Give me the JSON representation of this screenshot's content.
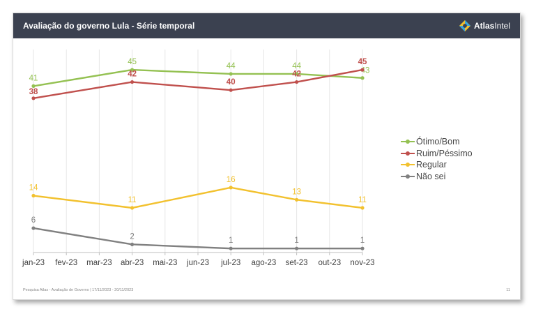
{
  "header": {
    "title": "Avaliação do governo Lula - Série temporal",
    "brand_bold": "Atlas",
    "brand_light": "Intel"
  },
  "footer": {
    "source": "Pesquisa Atlas - Avaliação de Governo | 17/11/2023 - 20/11/2023",
    "page": "11"
  },
  "colors": {
    "header_bg": "#3b4150",
    "otimo_bom": "#94c152",
    "ruim_pessimo": "#c0504d",
    "regular": "#f2c12e",
    "nao_sei": "#808080"
  },
  "chart_data": {
    "type": "line",
    "categories": [
      "jan-23",
      "fev-23",
      "mar-23",
      "abr-23",
      "mai-23",
      "jun-23",
      "jul-23",
      "ago-23",
      "set-23",
      "out-23",
      "nov-23"
    ],
    "ylim": [
      0,
      50
    ],
    "grid": "vertical",
    "legend_position": "right",
    "title": "",
    "xlabel": "",
    "ylabel": "",
    "series": [
      {
        "name": "Ótimo/Bom",
        "color": "#94c152",
        "values": [
          41,
          null,
          null,
          45,
          null,
          null,
          44,
          null,
          44,
          null,
          43
        ],
        "labels": [
          "41",
          null,
          null,
          "45",
          null,
          null,
          "44",
          null,
          "44",
          null,
          "43"
        ]
      },
      {
        "name": "Ruim/Péssimo",
        "color": "#c0504d",
        "values": [
          38,
          null,
          null,
          42,
          null,
          null,
          40,
          null,
          42,
          null,
          45
        ],
        "labels": [
          "38",
          null,
          null,
          "42",
          null,
          null,
          "40",
          null,
          "42",
          null,
          "45"
        ]
      },
      {
        "name": "Regular",
        "color": "#f2c12e",
        "values": [
          14,
          null,
          null,
          11,
          null,
          null,
          16,
          null,
          13,
          null,
          11
        ],
        "labels": [
          "14",
          null,
          null,
          "11",
          null,
          null,
          "16",
          null,
          "13",
          null,
          "11"
        ]
      },
      {
        "name": "Não sei",
        "color": "#808080",
        "values": [
          6,
          null,
          null,
          2,
          null,
          null,
          1,
          null,
          1,
          null,
          1
        ],
        "labels": [
          "6",
          null,
          null,
          "2",
          null,
          null,
          "1",
          null,
          "1",
          null,
          "1"
        ]
      }
    ]
  }
}
